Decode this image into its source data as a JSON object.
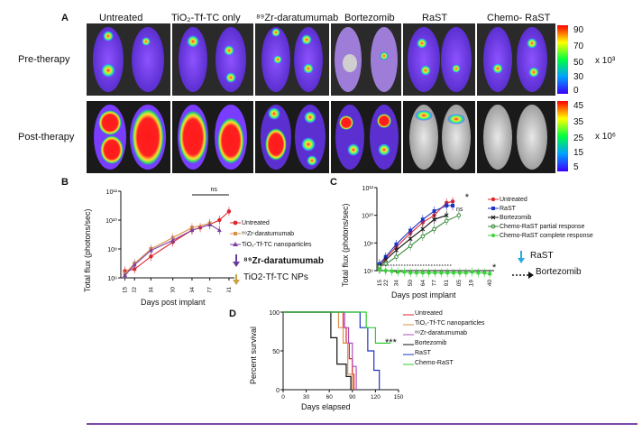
{
  "panelA": {
    "letter": "A",
    "columns": [
      "Untreated",
      "TiO₂-Tf-TC only",
      "⁸⁹Zr-daratumumab",
      "Bortezomib",
      "RaST",
      "Chemo- RaST"
    ],
    "rows": [
      "Pre-therapy",
      "Post-therapy"
    ],
    "pre_scale": {
      "ticks": [
        "90",
        "70",
        "50",
        "30",
        "0"
      ],
      "unit": "x 10³"
    },
    "post_scale": {
      "ticks": [
        "45",
        "35",
        "25",
        "15",
        "5"
      ],
      "unit": "x 10⁶"
    }
  },
  "panelB": {
    "letter": "B",
    "ylabel": "Total flux (photons/sec)",
    "xlabel": "Days post implant",
    "yticks": [
      "10¹²",
      "10¹⁰",
      "10⁸",
      "10⁶"
    ],
    "xticks": [
      "15",
      "22",
      "34",
      "50",
      "64",
      "77",
      "91"
    ],
    "ns": "ns",
    "legend": [
      "Untreated",
      "⁸⁹Zr-daratumumab",
      "TiO₂-Tf-TC nanoparticles"
    ],
    "arrow_labels": [
      "⁸⁹Zr-daratumumab",
      "TiO2-Tf-TC NPs"
    ]
  },
  "panelC": {
    "letter": "C",
    "ylabel": "Total flux (photons/sec)",
    "xlabel": "Days post implant",
    "yticks": [
      "10¹²",
      "10¹⁰",
      "10⁸",
      "10⁶"
    ],
    "xticks": [
      "15",
      "22",
      "34",
      "50",
      "64",
      "77",
      "91",
      "105",
      "119",
      "140"
    ],
    "ns": "ns",
    "star": "*",
    "legend": [
      "Untreated",
      "RaST",
      "Bortezomib",
      "Chemo-RaST partial response",
      "Chemo-RaST complete response"
    ],
    "arrow_labels": [
      "RaST",
      "Bortezomib"
    ]
  },
  "panelD": {
    "letter": "D",
    "ylabel": "Percent survival",
    "xlabel": "Days elapsed",
    "yticks": [
      "100",
      "50",
      "0"
    ],
    "xticks": [
      "0",
      "30",
      "60",
      "90",
      "120",
      "150"
    ],
    "sig": "***",
    "legend": [
      "Untreated",
      "TiO₂-Tf-TC nanoparticles",
      "⁸⁹Zr-daratumumab",
      "Bortezomib",
      "RaST",
      "Chemo-RaST"
    ]
  },
  "colors": {
    "untreated": "#e0242c",
    "zr": "#d9914a",
    "tio2": "#7a3fa0",
    "rast": "#1c35c4",
    "bortezomib": "#111111",
    "partial": "#3a8a3a",
    "complete": "#3ed13e",
    "chemo_rast": "#2ecc2e",
    "rule": "#7b4aa6"
  },
  "chart_data": [
    {
      "type": "line",
      "panel": "B",
      "ylabel": "Total flux (photons/sec)",
      "xlabel": "Days post implant",
      "yscale": "log",
      "ylim": [
        1000000.0,
        1000000000000.0
      ],
      "xlim": [
        12,
        95
      ],
      "series": [
        {
          "name": "Untreated",
          "x": [
            15,
            22,
            34,
            50,
            64,
            70,
            77,
            84,
            91
          ],
          "y": [
            3000000.0,
            4000000.0,
            30000000.0,
            300000000.0,
            2000000000.0,
            3000000000.0,
            5000000000.0,
            10000000000.0,
            40000000000.0
          ]
        },
        {
          "name": "⁸⁹Zr-daratumumab",
          "x": [
            15,
            22,
            34,
            50,
            64,
            77
          ],
          "y": [
            2000000.0,
            10000000.0,
            100000000.0,
            600000000.0,
            3000000000.0,
            6000000000.0
          ]
        },
        {
          "name": "TiO₂-Tf-TC nanoparticles",
          "x": [
            15,
            22,
            34,
            50,
            64,
            77,
            84
          ],
          "y": [
            1500000.0,
            8000000.0,
            80000000.0,
            400000000.0,
            2000000000.0,
            5000000000.0,
            2000000000.0
          ]
        }
      ]
    },
    {
      "type": "line",
      "panel": "C",
      "ylabel": "Total flux (photons/sec)",
      "xlabel": "Days post implant",
      "yscale": "log",
      "ylim": [
        1000000.0,
        1000000000000.0
      ],
      "xlim": [
        12,
        145
      ],
      "series": [
        {
          "name": "Untreated",
          "x": [
            15,
            22,
            34,
            50,
            64,
            77,
            91,
            98
          ],
          "y": [
            3000000.0,
            8000000.0,
            50000000.0,
            500000000.0,
            3000000000.0,
            10000000000.0,
            80000000000.0,
            100000000000.0
          ]
        },
        {
          "name": "RaST",
          "x": [
            15,
            22,
            34,
            50,
            64,
            77,
            91,
            98
          ],
          "y": [
            3000000.0,
            10000000.0,
            80000000.0,
            800000000.0,
            5000000000.0,
            20000000000.0,
            50000000000.0,
            50000000000.0
          ]
        },
        {
          "name": "Bortezomib",
          "x": [
            15,
            22,
            34,
            50,
            64,
            77,
            91
          ],
          "y": [
            2000000.0,
            6000000.0,
            30000000.0,
            200000000.0,
            1000000000.0,
            5000000000.0,
            10000000000.0
          ]
        },
        {
          "name": "Chemo-RaST partial response",
          "x": [
            15,
            22,
            34,
            50,
            64,
            77,
            91,
            105
          ],
          "y": [
            2000000.0,
            3000000.0,
            10000000.0,
            60000000.0,
            300000000.0,
            1000000000.0,
            4000000000.0,
            10000000000.0
          ]
        },
        {
          "name": "Chemo-RaST complete response",
          "x": [
            15,
            22,
            29,
            36,
            43,
            50,
            57,
            64,
            71,
            78,
            85,
            92,
            99,
            106,
            113,
            120,
            127,
            134,
            140
          ],
          "y": [
            1200000.0,
            1000000.0,
            900000.0,
            800000.0,
            800000.0,
            700000.0,
            700000.0,
            700000.0,
            700000.0,
            700000.0,
            700000.0,
            700000.0,
            700000.0,
            700000.0,
            700000.0,
            800000.0,
            700000.0,
            700000.0,
            600000.0
          ]
        }
      ]
    },
    {
      "type": "line",
      "panel": "D",
      "ylabel": "Percent survival",
      "xlabel": "Days elapsed",
      "ylim": [
        0,
        100
      ],
      "xlim": [
        0,
        150
      ],
      "series": [
        {
          "name": "Untreated",
          "x": [
            0,
            72,
            78,
            82,
            86,
            90,
            92
          ],
          "y": [
            100,
            100,
            80,
            60,
            40,
            20,
            0
          ]
        },
        {
          "name": "TiO₂-Tf-TC nanoparticles",
          "x": [
            0,
            65,
            72,
            78,
            84,
            90
          ],
          "y": [
            100,
            100,
            80,
            60,
            20,
            0
          ]
        },
        {
          "name": "⁸⁹Zr-daratumumab",
          "x": [
            0,
            75,
            80,
            85,
            90,
            95
          ],
          "y": [
            100,
            100,
            80,
            60,
            30,
            0
          ]
        },
        {
          "name": "Bortezomib",
          "x": [
            0,
            55,
            62,
            70,
            82,
            88
          ],
          "y": [
            100,
            100,
            67,
            33,
            17,
            0
          ]
        },
        {
          "name": "RaST",
          "x": [
            0,
            90,
            100,
            110,
            118,
            125
          ],
          "y": [
            100,
            100,
            80,
            50,
            25,
            0
          ]
        },
        {
          "name": "Chemo-RaST",
          "x": [
            0,
            95,
            108,
            120,
            140
          ],
          "y": [
            100,
            100,
            80,
            60,
            60
          ]
        }
      ]
    }
  ]
}
